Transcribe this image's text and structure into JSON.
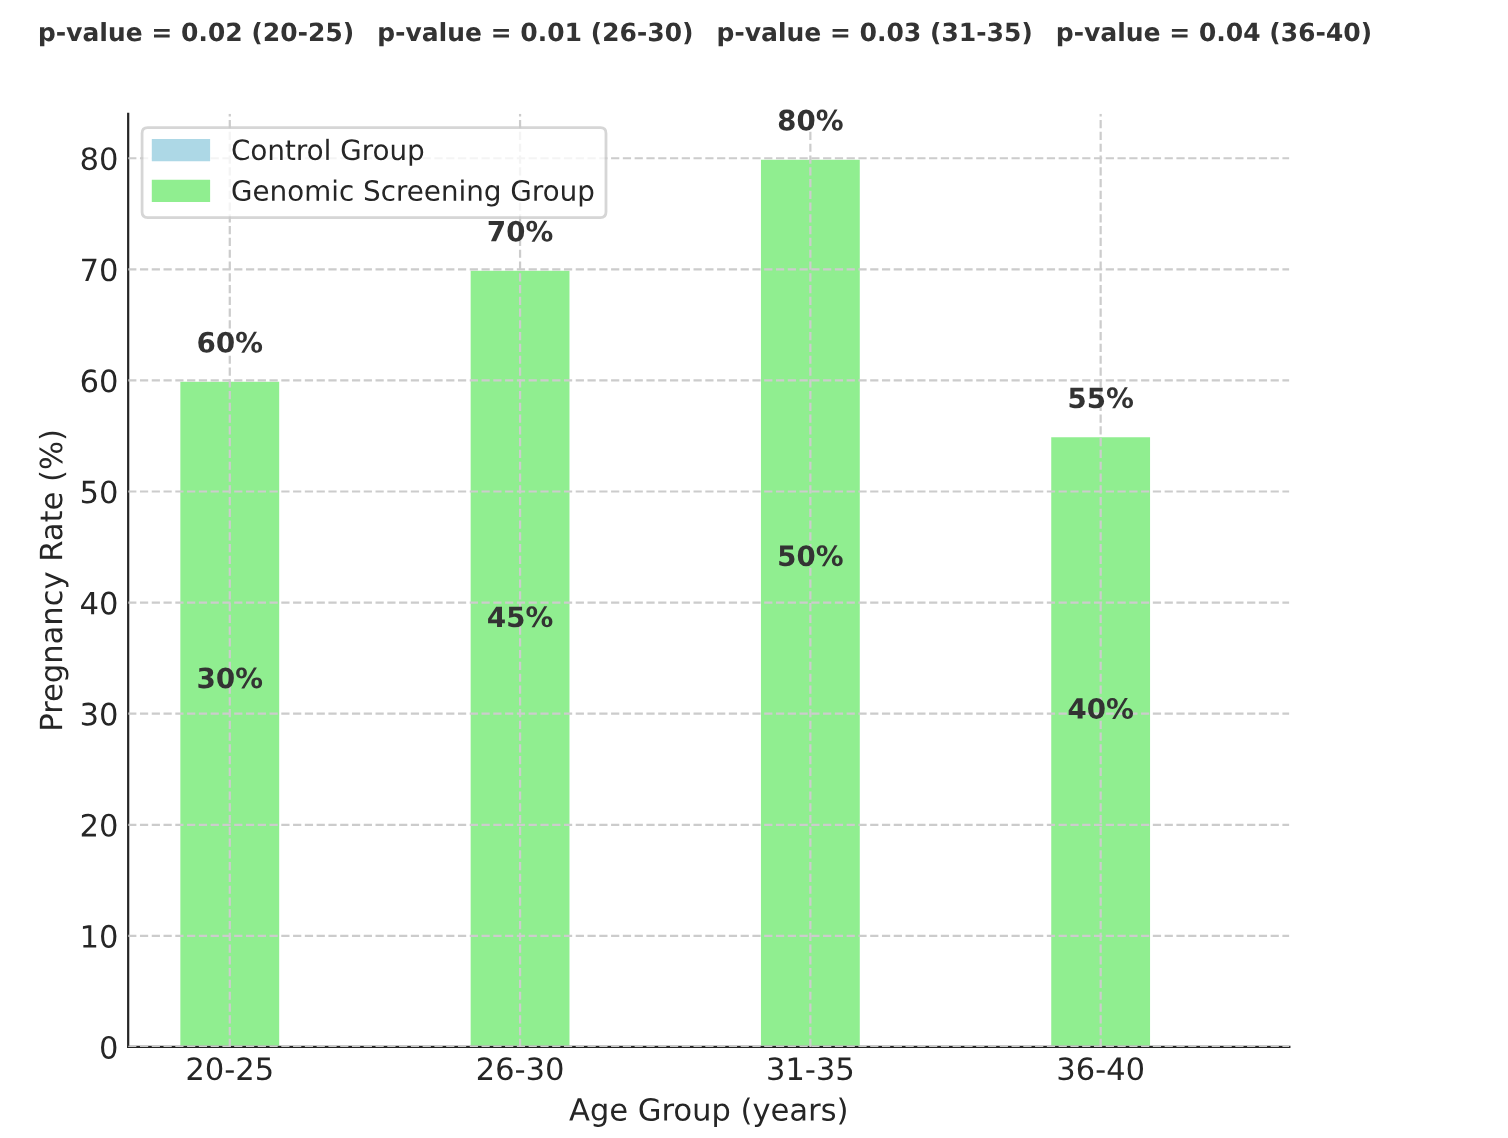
{
  "chart_data": {
    "type": "bar",
    "xlabel": "Age Group (years)",
    "ylabel": "Pregnancy Rate (%)",
    "categories": [
      "20-25",
      "26-30",
      "31-35",
      "36-40"
    ],
    "series": [
      {
        "name": "Control Group",
        "color": "#add8e6",
        "values": [
          null,
          null,
          null,
          null
        ]
      },
      {
        "name": "Genomic Screening Group",
        "color": "#90ee90",
        "values": [
          60,
          70,
          80,
          55
        ],
        "value_labels": [
          "60%",
          "70%",
          "80%",
          "55%"
        ]
      }
    ],
    "ylim": [
      0,
      84
    ],
    "yticks": [
      0,
      10,
      20,
      30,
      40,
      50,
      60,
      70,
      80
    ],
    "grid": true,
    "legend": "top left",
    "annotations": [
      "30%",
      "45%",
      "50%",
      "40%",
      "p-value = 0.02 (20-25)",
      "p-value = 0.01 (26-30)",
      "p-value = 0.03 (31-35)",
      "p-value = 0.04 (36-40)"
    ]
  }
}
